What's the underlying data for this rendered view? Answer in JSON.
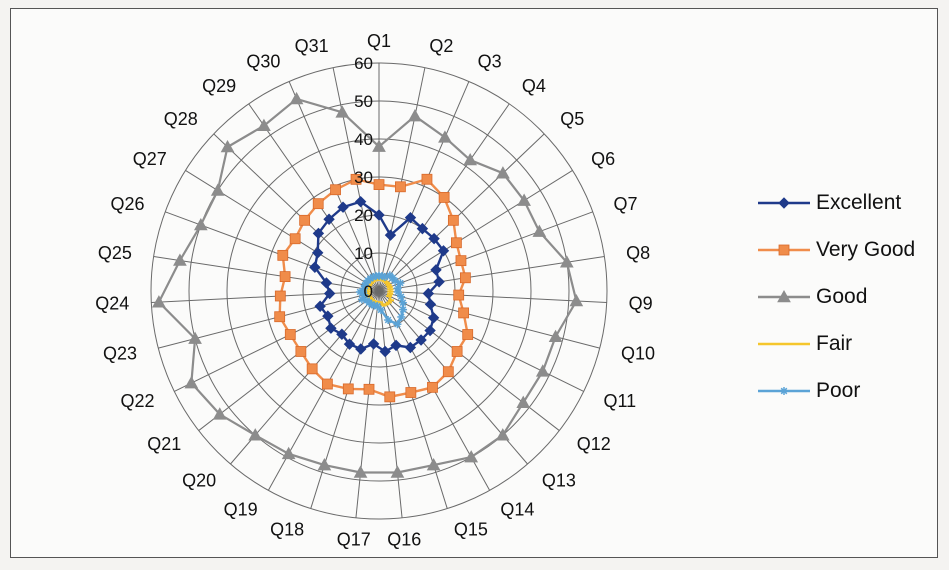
{
  "chart_data": {
    "type": "radar",
    "categories": [
      "Q1",
      "Q2",
      "Q3",
      "Q4",
      "Q5",
      "Q6",
      "Q7",
      "Q8",
      "Q9",
      "Q10",
      "Q11",
      "Q12",
      "Q13",
      "Q14",
      "Q15",
      "Q16",
      "Q17",
      "Q18",
      "Q19",
      "Q20",
      "Q21",
      "Q22",
      "Q23",
      "Q24",
      "Q25",
      "Q26",
      "Q27",
      "Q28",
      "Q29",
      "Q30",
      "Q31"
    ],
    "radial_ticks": [
      "0",
      "10",
      "20",
      "30",
      "40",
      "50",
      "60"
    ],
    "rlim": [
      0,
      60
    ],
    "grid": true,
    "legend_position": "right",
    "series": [
      {
        "name": "Excellent",
        "color": "#1f3a8a",
        "marker": "diamond",
        "values": [
          20,
          15,
          21,
          20,
          20,
          20,
          16,
          16,
          13,
          14,
          16,
          17,
          17,
          17,
          15,
          16,
          14,
          16,
          16,
          15,
          16,
          15,
          16,
          13,
          14,
          18,
          19,
          22,
          23,
          24,
          24
        ]
      },
      {
        "name": "Very Good",
        "color": "#f08c4a",
        "marker": "square",
        "values": [
          28,
          28,
          32,
          30,
          27,
          24,
          23,
          23,
          21,
          23,
          26,
          26,
          28,
          29,
          28,
          28,
          26,
          27,
          28,
          27,
          26,
          26,
          27,
          26,
          25,
          27,
          26,
          27,
          28,
          29,
          30
        ]
      },
      {
        "name": "Good",
        "color": "#8c8c8c",
        "marker": "triangle",
        "values": [
          38,
          47,
          44,
          42,
          45,
          45,
          45,
          50,
          52,
          48,
          48,
          48,
          50,
          50,
          48,
          48,
          48,
          48,
          49,
          50,
          53,
          55,
          50,
          58,
          53,
          50,
          50,
          55,
          53,
          55,
          48
        ]
      },
      {
        "name": "Fair",
        "color": "#f5c62c",
        "marker": "line",
        "values": [
          3,
          4,
          3,
          3,
          3,
          3,
          3,
          3,
          3,
          3,
          3,
          4,
          4,
          4,
          4,
          3,
          3,
          3,
          3,
          3,
          3,
          3,
          3,
          3,
          3,
          3,
          3,
          3,
          3,
          3,
          3
        ]
      },
      {
        "name": "Poor",
        "color": "#5ba3d6",
        "marker": "star",
        "values": [
          4,
          4,
          4,
          5,
          5,
          5,
          6,
          5,
          5,
          6,
          7,
          8,
          9,
          10,
          8,
          5,
          4,
          4,
          4,
          4,
          4,
          5,
          4,
          5,
          4,
          4,
          4,
          4,
          4,
          4,
          4
        ]
      }
    ]
  }
}
